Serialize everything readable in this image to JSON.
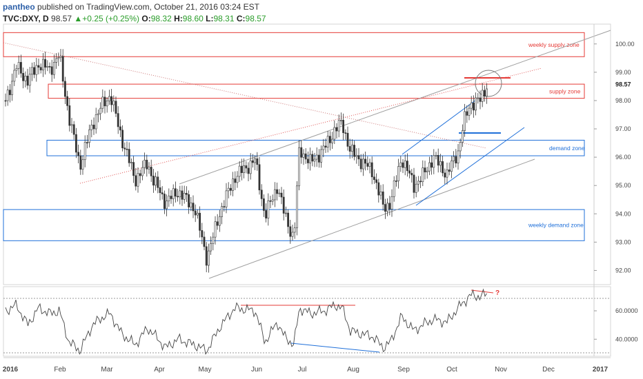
{
  "header": {
    "author": "pantheo",
    "published_text": "published on TradingView.com, October 21, 2016 03:24 EST",
    "symbol": "TVC:DXY, D",
    "last": "98.57",
    "change": "+0.25 (+0.25%)",
    "open_label": "O:",
    "open": "98.32",
    "high_label": "H:",
    "high": "98.60",
    "low_label": "L:",
    "low": "98.31",
    "close_label": "C:",
    "close": "98.57"
  },
  "chart_data": {
    "type": "candlestick",
    "symbol": "TVC:DXY",
    "interval": "D",
    "x_labels": [
      "2016",
      "Feb",
      "Mar",
      "Apr",
      "May",
      "Jun",
      "Jul",
      "Aug",
      "Sep",
      "Oct",
      "Nov",
      "Dec",
      "2017"
    ],
    "price_axis": {
      "ticks": [
        92.0,
        93.0,
        94.0,
        95.0,
        96.0,
        97.0,
        98.0,
        99.0,
        100.0
      ],
      "tick_labels": [
        "92.00",
        "93.00",
        "94.00",
        "95.00",
        "96.00",
        "97.00",
        "98.00",
        "99.00",
        "100.00"
      ],
      "last_price_label": "98.57",
      "range": [
        91.5,
        100.7
      ]
    },
    "indicator_axis": {
      "ticks": [
        40,
        60
      ],
      "tick_labels": [
        "40.0000",
        "60.0000"
      ],
      "range": [
        28,
        77
      ]
    },
    "zones": [
      {
        "label": "weekly supply zone",
        "low": 99.55,
        "high": 100.4,
        "color": "#e53935"
      },
      {
        "label": "supply zone",
        "low": 98.08,
        "high": 98.58,
        "color": "#e53935"
      },
      {
        "label": "demand zone",
        "low": 96.05,
        "high": 96.6,
        "color": "#1e6fd9"
      },
      {
        "label": "weekly demand zone",
        "low": 93.05,
        "high": 94.15,
        "color": "#1e6fd9"
      }
    ],
    "annotations": [
      "?"
    ],
    "colors": {
      "up": "#333333",
      "down": "#333333",
      "supply": "#e53935",
      "demand": "#1e6fd9",
      "trend": "#9e9e9e"
    },
    "grid": false
  }
}
